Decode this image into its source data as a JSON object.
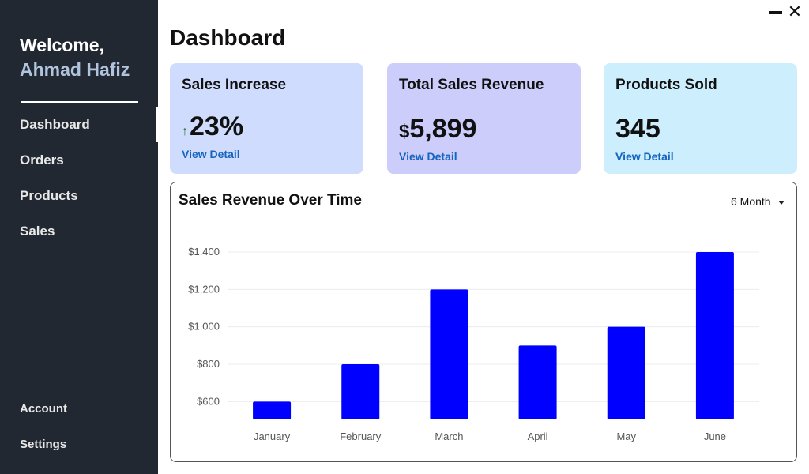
{
  "sidebar": {
    "welcome": "Welcome,",
    "user_name": "Ahmad Hafiz",
    "nav": [
      "Dashboard",
      "Orders",
      "Products",
      "Sales"
    ],
    "active": "Dashboard",
    "bottom": [
      "Account",
      "Settings"
    ]
  },
  "window": {
    "minimize": "minimize-icon",
    "close": "close-icon",
    "close_glyph": "✕"
  },
  "page": {
    "title": "Dashboard"
  },
  "cards": [
    {
      "title": "Sales Increase",
      "value": "23%",
      "link": "View Detail",
      "color": "#cfdcfd",
      "icon": "arrow-up-icon",
      "icon_glyph": "↑",
      "icon_color": "#2e7d32"
    },
    {
      "title": "Total Sales Revenue",
      "currency": "$",
      "value": "5,899",
      "link": "View Detail",
      "color": "#cccdfb"
    },
    {
      "title": "Products Sold",
      "value": "345",
      "link": "View Detail",
      "color": "#cdeffd"
    }
  ],
  "chart_data": {
    "type": "bar",
    "title": "Sales Revenue Over Time",
    "range_select": "6 Month",
    "categories": [
      "January",
      "February",
      "March",
      "April",
      "May",
      "June"
    ],
    "values": [
      600,
      800,
      1200,
      900,
      1000,
      1400
    ],
    "yticks": [
      600,
      800,
      1000,
      1200,
      1400
    ],
    "ytick_labels": [
      "$600",
      "$800",
      "$1.000",
      "$1.200",
      "$1.400"
    ],
    "ylim": [
      500,
      1400
    ],
    "bar_color": "#0000ff",
    "grid": true,
    "xlabel": "",
    "ylabel": ""
  }
}
